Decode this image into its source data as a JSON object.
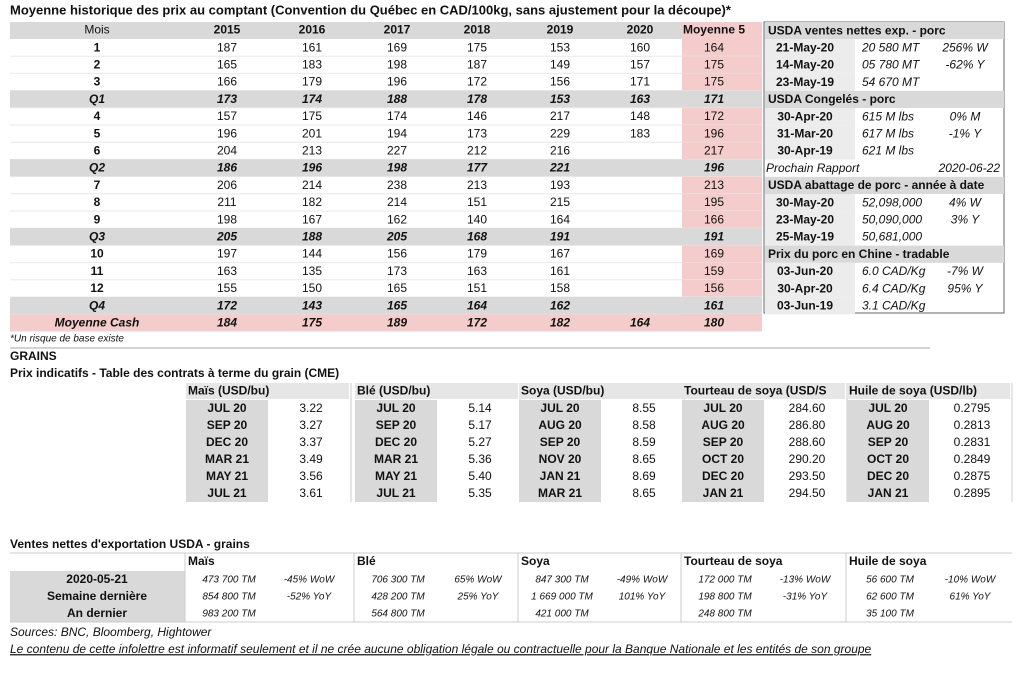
{
  "hist": {
    "title": "Moyenne historique des prix au comptant (Convention du Québec en CAD/100kg, sans ajustement pour la découpe)*",
    "header": [
      "Mois",
      "2015",
      "2016",
      "2017",
      "2018",
      "2019",
      "2020",
      "Moyenne 5"
    ],
    "rows": [
      [
        "1",
        187,
        161,
        169,
        175,
        153,
        160,
        164
      ],
      [
        "2",
        165,
        183,
        198,
        187,
        149,
        157,
        175
      ],
      [
        "3",
        166,
        179,
        196,
        172,
        156,
        171,
        175
      ],
      [
        "Q1",
        173,
        174,
        188,
        178,
        153,
        163,
        171
      ],
      [
        "4",
        157,
        175,
        174,
        146,
        217,
        148,
        172
      ],
      [
        "5",
        196,
        201,
        194,
        173,
        229,
        183,
        196
      ],
      [
        "6",
        204,
        213,
        227,
        212,
        216,
        null,
        217
      ],
      [
        "Q2",
        186,
        196,
        198,
        177,
        221,
        null,
        196
      ],
      [
        "7",
        206,
        214,
        238,
        213,
        193,
        null,
        213
      ],
      [
        "8",
        211,
        182,
        214,
        151,
        215,
        null,
        195
      ],
      [
        "9",
        198,
        167,
        162,
        140,
        164,
        null,
        166
      ],
      [
        "Q3",
        205,
        188,
        205,
        168,
        191,
        null,
        191
      ],
      [
        "10",
        197,
        144,
        156,
        179,
        167,
        null,
        169
      ],
      [
        "11",
        163,
        135,
        173,
        163,
        161,
        null,
        159
      ],
      [
        "12",
        155,
        150,
        165,
        151,
        158,
        null,
        156
      ],
      [
        "Q4",
        172,
        143,
        165,
        164,
        162,
        null,
        161
      ],
      [
        "Moyenne Cash",
        184,
        175,
        189,
        172,
        182,
        164,
        180
      ]
    ],
    "note": "*Un risque de base existe"
  },
  "usda": {
    "sections": [
      {
        "title": "USDA ventes nettes exp. - porc",
        "rows": [
          [
            "21-May-20",
            "20 580  MT",
            {
              "text": "256% W",
              "color": "#00a650"
            }
          ],
          [
            "14-May-20",
            "05 780  MT",
            {
              "text": "-62% Y",
              "color": "#e00000"
            }
          ],
          [
            "23-May-19",
            "54 670  MT"
          ]
        ]
      },
      {
        "title": "USDA Congelés - porc",
        "rows": [
          [
            "30-Apr-20",
            "615 M lbs",
            {
              "text": "0% M",
              "color": "#e00000"
            }
          ],
          [
            "31-Mar-20",
            "617 M lbs",
            {
              "text": "-1% Y",
              "color": "#e00000"
            }
          ],
          [
            "30-Apr-19",
            "621 M lbs"
          ]
        ]
      },
      {
        "title": "USDA abattage de porc - année à date",
        "rows": [
          [
            "30-May-20",
            "52,098,000",
            {
              "text": "4% W",
              "color": "#00a650"
            }
          ],
          [
            "23-May-20",
            "50,090,000",
            {
              "text": "3% Y",
              "color": "#00a650"
            }
          ],
          [
            "25-May-19",
            "50,681,000"
          ]
        ]
      },
      {
        "title": "Prix du porc en Chine - tradable",
        "rows": [
          [
            "03-Jun-20",
            "6.0 CAD/Kg",
            {
              "text": "-7% W",
              "color": "#e00000"
            }
          ],
          [
            "30-Apr-20",
            "6.4 CAD/Kg",
            {
              "text": "95% Y",
              "color": "#00a650"
            }
          ],
          [
            "03-Jun-19",
            "3.1 CAD/Kg"
          ]
        ]
      }
    ],
    "next_report": {
      "label": "Prochain Rapport",
      "date": "2020-06-22"
    }
  },
  "grains": {
    "heading": "GRAINS",
    "subtitle": "Prix indicatifs - Table des contrats à terme du grain (CME)",
    "groups": [
      {
        "header": "Maïs (USD/bu)",
        "rows": [
          [
            "JUL 20",
            "3.22"
          ],
          [
            "SEP 20",
            "3.27"
          ],
          [
            "DEC 20",
            "3.37"
          ],
          [
            "MAR 21",
            "3.49"
          ],
          [
            "MAY 21",
            "3.56"
          ],
          [
            "JUL 21",
            "3.61"
          ]
        ]
      },
      {
        "header": "Blé (USD/bu)",
        "rows": [
          [
            "JUL 20",
            "5.14"
          ],
          [
            "SEP 20",
            "5.17"
          ],
          [
            "DEC 20",
            "5.27"
          ],
          [
            "MAR 21",
            "5.36"
          ],
          [
            "MAY 21",
            "5.40"
          ],
          [
            "JUL 21",
            "5.35"
          ]
        ]
      },
      {
        "header": "Soya (USD/bu)",
        "rows": [
          [
            "JUL 20",
            "8.55"
          ],
          [
            "AUG 20",
            "8.58"
          ],
          [
            "SEP 20",
            "8.59"
          ],
          [
            "NOV 20",
            "8.65"
          ],
          [
            "JAN 21",
            "8.69"
          ],
          [
            "MAR 21",
            "8.65"
          ]
        ]
      },
      {
        "header": "Tourteau de soya (USD/S",
        "rows": [
          [
            "JUL 20",
            "284.60"
          ],
          [
            "AUG 20",
            "286.80"
          ],
          [
            "SEP 20",
            "288.60"
          ],
          [
            "OCT 20",
            "290.20"
          ],
          [
            "DEC 20",
            "293.50"
          ],
          [
            "JAN 21",
            "294.50"
          ]
        ]
      },
      {
        "header": "Huile de soya (USD/lb)",
        "rows": [
          [
            "JUL 20",
            "0.2795"
          ],
          [
            "AUG 20",
            "0.2813"
          ],
          [
            "SEP 20",
            "0.2831"
          ],
          [
            "OCT 20",
            "0.2849"
          ],
          [
            "DEC 20",
            "0.2875"
          ],
          [
            "JAN 21",
            "0.2895"
          ]
        ]
      }
    ]
  },
  "exports": {
    "title": "Ventes nettes d'exportation USDA - grains",
    "row_labels": [
      "2020-05-21",
      "Semaine dernière",
      "An dernier"
    ],
    "groups": [
      {
        "header": "Maïs",
        "rows": [
          [
            "473 700 TM",
            {
              "text": "-45% WoW",
              "color": "#e00000"
            }
          ],
          [
            "854 800 TM",
            {
              "text": "-52% YoY",
              "color": "#e00000"
            }
          ],
          [
            "983 200 TM"
          ]
        ]
      },
      {
        "header": "Blé",
        "rows": [
          [
            "706 300 TM",
            {
              "text": "65% WoW",
              "color": "#00a650"
            }
          ],
          [
            "428 200 TM",
            {
              "text": "25% YoY",
              "color": "#00a650"
            }
          ],
          [
            "564 800 TM"
          ]
        ]
      },
      {
        "header": "Soya",
        "rows": [
          [
            "847 300 TM",
            {
              "text": "-49% WoW",
              "color": "#e00000"
            }
          ],
          [
            "1 669 000 TM",
            {
              "text": "101% YoY",
              "color": "#00a650"
            }
          ],
          [
            "421 000 TM"
          ]
        ]
      },
      {
        "header": "Tourteau de soya",
        "rows": [
          [
            "172 000 TM",
            {
              "text": "-13% WoW",
              "color": "#e00000"
            }
          ],
          [
            "198 800 TM",
            {
              "text": "-31% YoY",
              "color": "#e00000"
            }
          ],
          [
            "248 800 TM"
          ]
        ]
      },
      {
        "header": "Huile de soya",
        "rows": [
          [
            "56 600 TM",
            {
              "text": "-10% WoW",
              "color": "#e00000"
            }
          ],
          [
            "62 600 TM",
            {
              "text": "61% YoY",
              "color": "#00a650"
            }
          ],
          [
            "35 100 TM"
          ]
        ]
      }
    ]
  },
  "footer": {
    "sources": "Sources: BNC, Bloomberg, Hightower",
    "disclaimer": "Le contenu de cette infolettre est informatif seulement et il ne crée aucune obligation légale ou contractuelle pour la Banque Nationale et les entités de son groupe"
  }
}
